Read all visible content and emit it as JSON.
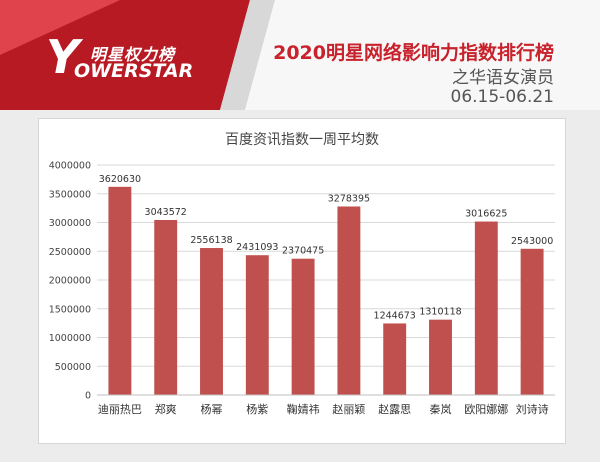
{
  "header": {
    "logo_cn": "明星权力榜",
    "logo_en": "OWERSTAR",
    "logo_mark": "Y",
    "title": "2020明星网络影响力指数排行榜",
    "subtitle": "之华语女演员",
    "date_range": "06.15-06.21"
  },
  "colors": {
    "accent": "#c8222c",
    "bar": "#c0504d",
    "grid": "#d9d9d9",
    "text": "#444444"
  },
  "chart_data": {
    "type": "bar",
    "title": "百度资讯指数一周平均数",
    "xlabel": "",
    "ylabel": "",
    "ylim": [
      0,
      4000000
    ],
    "yticks": [
      "0",
      "500000",
      "1000000",
      "1500000",
      "2000000",
      "2500000",
      "3000000",
      "3500000",
      "4000000"
    ],
    "grid": true,
    "legend": "none",
    "categories": [
      "迪丽热巴",
      "郑爽",
      "杨幂",
      "杨紫",
      "鞠婧祎",
      "赵丽颖",
      "赵露思",
      "秦岚",
      "欧阳娜娜",
      "刘诗诗"
    ],
    "values": [
      3620630,
      3043572,
      2556138,
      2431093,
      2370475,
      3278395,
      1244673,
      1310118,
      3016625,
      2543000
    ],
    "value_labels": [
      "3620630",
      "3043572",
      "2556138",
      "2431093",
      "2370475",
      "3278395",
      "1244673",
      "1310118",
      "3016625",
      "2543000"
    ]
  }
}
